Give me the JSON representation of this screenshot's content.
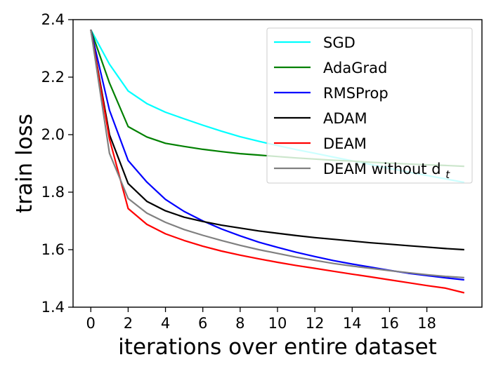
{
  "chart_data": {
    "type": "line",
    "title": "",
    "xlabel": "iterations over entire dataset",
    "ylabel": "train loss",
    "xlim": [
      -0.95,
      20.95
    ],
    "ylim": [
      1.4,
      2.4
    ],
    "xticks": [
      0,
      2,
      4,
      6,
      8,
      10,
      12,
      14,
      16,
      18
    ],
    "xtick_labels": [
      "0",
      "2",
      "4",
      "6",
      "8",
      "10",
      "12",
      "14",
      "16",
      "18"
    ],
    "yticks": [
      1.4,
      1.6,
      1.8,
      2.0,
      2.2,
      2.4
    ],
    "ytick_labels": [
      "1.4",
      "1.6",
      "1.8",
      "2.0",
      "2.2",
      "2.4"
    ],
    "grid": false,
    "legend_position": "top-right",
    "x": [
      0,
      1,
      2,
      3,
      4,
      5,
      6,
      7,
      8,
      9,
      10,
      11,
      12,
      13,
      14,
      15,
      16,
      17,
      18,
      19,
      20
    ],
    "series": [
      {
        "name": "SGD",
        "color": "#00ffff",
        "values": [
          2.365,
          2.245,
          2.152,
          2.108,
          2.078,
          2.055,
          2.033,
          2.012,
          1.993,
          1.977,
          1.962,
          1.948,
          1.935,
          1.922,
          1.909,
          1.896,
          1.883,
          1.87,
          1.858,
          1.846,
          1.834
        ]
      },
      {
        "name": "AdaGrad",
        "color": "#008000",
        "values": [
          2.365,
          2.18,
          2.028,
          1.992,
          1.97,
          1.959,
          1.949,
          1.941,
          1.934,
          1.929,
          1.924,
          1.919,
          1.915,
          1.911,
          1.908,
          1.904,
          1.901,
          1.898,
          1.895,
          1.893,
          1.89
        ]
      },
      {
        "name": "RMSProp",
        "color": "#0000ff",
        "values": [
          2.365,
          2.085,
          1.91,
          1.835,
          1.775,
          1.733,
          1.7,
          1.672,
          1.648,
          1.626,
          1.608,
          1.591,
          1.576,
          1.562,
          1.55,
          1.539,
          1.528,
          1.518,
          1.51,
          1.502,
          1.495
        ]
      },
      {
        "name": "ADAM",
        "color": "#000000",
        "values": [
          2.365,
          2.0,
          1.83,
          1.768,
          1.735,
          1.713,
          1.698,
          1.685,
          1.675,
          1.665,
          1.657,
          1.649,
          1.642,
          1.636,
          1.63,
          1.624,
          1.619,
          1.614,
          1.609,
          1.604,
          1.6
        ]
      },
      {
        "name": "DEAM",
        "color": "#ff0000",
        "values": [
          2.365,
          1.985,
          1.743,
          1.688,
          1.655,
          1.632,
          1.612,
          1.595,
          1.581,
          1.568,
          1.556,
          1.545,
          1.535,
          1.525,
          1.515,
          1.505,
          1.495,
          1.485,
          1.475,
          1.466,
          1.45
        ]
      },
      {
        "name": "DEAM without d",
        "name_subscript": "t",
        "color": "#808080",
        "values": [
          2.365,
          1.935,
          1.778,
          1.727,
          1.695,
          1.67,
          1.65,
          1.632,
          1.615,
          1.6,
          1.587,
          1.574,
          1.563,
          1.552,
          1.543,
          1.535,
          1.527,
          1.52,
          1.513,
          1.507,
          1.503
        ]
      }
    ]
  }
}
